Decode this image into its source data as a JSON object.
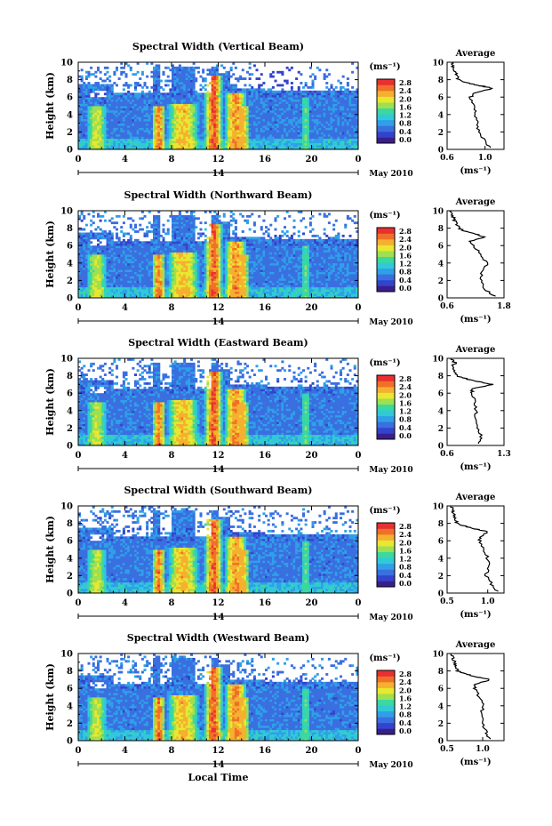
{
  "figure": {
    "month_label": "May 2010",
    "day_label": "14",
    "xlabel": "Local Time",
    "colorbar_unit": "(ms⁻¹)",
    "avg_title": "Average",
    "avg_xlabel": "(ms⁻¹)"
  },
  "colorscale": {
    "ticks": [
      "0.0",
      "0.4",
      "0.8",
      "1.2",
      "1.6",
      "2.0",
      "2.4",
      "2.8"
    ],
    "colors": [
      "#3a1f8c",
      "#3344cc",
      "#3a6fe0",
      "#2fa0e8",
      "#31c9d8",
      "#39d9a0",
      "#9ee050",
      "#e8e830",
      "#f5b030",
      "#f07028",
      "#e83030"
    ]
  },
  "chart_data": [
    {
      "type": "heatmap",
      "title": "Spectral Width (Vertical Beam)",
      "ylabel": "Height (km)",
      "xlim": [
        0,
        24
      ],
      "ylim": [
        0,
        10
      ],
      "x_ticks": [
        "0",
        "4",
        "8",
        "12",
        "16",
        "20",
        "0"
      ],
      "y_ticks": [
        "0",
        "2",
        "4",
        "6",
        "8",
        "10"
      ],
      "colorbar_range": [
        0.0,
        2.8
      ],
      "average_profile": {
        "xlim": [
          0.6,
          1.2
        ],
        "x_ticks": [
          "0.6",
          "1.0"
        ],
        "y_ticks": [
          "0",
          "2",
          "4",
          "6",
          "8",
          "10"
        ],
        "height": [
          0.2,
          1.0,
          2.0,
          3.0,
          4.0,
          5.0,
          6.0,
          6.5,
          7.0,
          7.3,
          7.6,
          8.0,
          8.5,
          9.0,
          9.5,
          10.0
        ],
        "value": [
          1.05,
          1.0,
          0.93,
          0.92,
          0.9,
          0.88,
          0.85,
          0.9,
          1.08,
          0.95,
          0.82,
          0.72,
          0.7,
          0.68,
          0.66,
          0.65
        ]
      }
    },
    {
      "type": "heatmap",
      "title": "Spectral Width (Northward Beam)",
      "ylabel": "Height (km)",
      "xlim": [
        0,
        24
      ],
      "ylim": [
        0,
        10
      ],
      "x_ticks": [
        "0",
        "4",
        "8",
        "12",
        "16",
        "20",
        "0"
      ],
      "y_ticks": [
        "0",
        "2",
        "4",
        "6",
        "8",
        "10"
      ],
      "colorbar_range": [
        0.0,
        2.8
      ],
      "average_profile": {
        "xlim": [
          0.6,
          1.8
        ],
        "x_ticks": [
          "0.6",
          "1.8"
        ],
        "y_ticks": [
          "0",
          "2",
          "4",
          "6",
          "8",
          "10"
        ],
        "height": [
          0.2,
          1.0,
          2.0,
          3.0,
          4.0,
          5.0,
          6.0,
          6.5,
          7.0,
          7.3,
          7.6,
          8.0,
          8.5,
          9.0,
          9.5,
          10.0
        ],
        "value": [
          1.6,
          1.4,
          1.3,
          1.35,
          1.45,
          1.3,
          1.15,
          1.1,
          1.4,
          1.2,
          1.0,
          0.85,
          0.8,
          0.75,
          0.7,
          0.68
        ]
      }
    },
    {
      "type": "heatmap",
      "title": "Spectral Width (Eastward Beam)",
      "ylabel": "Height (km)",
      "xlim": [
        0,
        24
      ],
      "ylim": [
        0,
        10
      ],
      "x_ticks": [
        "0",
        "4",
        "8",
        "12",
        "16",
        "20",
        "0"
      ],
      "y_ticks": [
        "0",
        "2",
        "4",
        "6",
        "8",
        "10"
      ],
      "colorbar_range": [
        0.0,
        2.8
      ],
      "average_profile": {
        "xlim": [
          0.6,
          1.3
        ],
        "x_ticks": [
          "0.6",
          "1.3"
        ],
        "y_ticks": [
          "0",
          "2",
          "4",
          "6",
          "8",
          "10"
        ],
        "height": [
          0.2,
          1.0,
          2.0,
          3.0,
          4.0,
          5.0,
          6.0,
          6.5,
          7.0,
          7.3,
          7.6,
          8.0,
          8.5,
          9.0,
          9.5,
          10.0
        ],
        "value": [
          1.0,
          1.02,
          0.98,
          0.96,
          0.95,
          0.94,
          0.9,
          0.92,
          1.15,
          1.0,
          0.85,
          0.72,
          0.68,
          0.66,
          0.7,
          0.64
        ]
      }
    },
    {
      "type": "heatmap",
      "title": "Spectral Width (Southward Beam)",
      "ylabel": "Height (km)",
      "xlim": [
        0,
        24
      ],
      "ylim": [
        0,
        10
      ],
      "x_ticks": [
        "0",
        "4",
        "8",
        "12",
        "16",
        "20",
        "0"
      ],
      "y_ticks": [
        "0",
        "2",
        "4",
        "6",
        "8",
        "10"
      ],
      "colorbar_range": [
        0.0,
        2.8
      ],
      "average_profile": {
        "xlim": [
          0.5,
          1.2
        ],
        "x_ticks": [
          "0.5",
          "1.0"
        ],
        "y_ticks": [
          "0",
          "2",
          "4",
          "6",
          "8",
          "10"
        ],
        "height": [
          0.2,
          1.0,
          2.0,
          3.0,
          4.0,
          5.0,
          6.0,
          6.5,
          7.0,
          7.3,
          7.6,
          8.0,
          8.5,
          9.0,
          9.5,
          10.0
        ],
        "value": [
          1.12,
          1.05,
          0.98,
          1.02,
          1.0,
          0.95,
          0.9,
          0.92,
          1.0,
          0.88,
          0.75,
          0.62,
          0.6,
          0.58,
          0.56,
          0.55
        ]
      }
    },
    {
      "type": "heatmap",
      "title": "Spectral Width (Westward Beam)",
      "ylabel": "Height (km)",
      "xlim": [
        0,
        24
      ],
      "ylim": [
        0,
        10
      ],
      "x_ticks": [
        "0",
        "4",
        "8",
        "12",
        "16",
        "20",
        "0"
      ],
      "y_ticks": [
        "0",
        "2",
        "4",
        "6",
        "8",
        "10"
      ],
      "colorbar_range": [
        0.0,
        2.8
      ],
      "average_profile": {
        "xlim": [
          0.5,
          1.3
        ],
        "x_ticks": [
          "0.5",
          "1.0"
        ],
        "y_ticks": [
          "0",
          "2",
          "4",
          "6",
          "8",
          "10"
        ],
        "height": [
          0.2,
          1.0,
          2.0,
          3.0,
          4.0,
          5.0,
          6.0,
          6.5,
          7.0,
          7.3,
          7.6,
          8.0,
          8.5,
          9.0,
          9.5,
          10.0
        ],
        "value": [
          1.1,
          1.05,
          1.0,
          0.98,
          1.02,
          0.95,
          0.88,
          0.9,
          1.1,
          0.92,
          0.78,
          0.65,
          0.62,
          0.6,
          0.58,
          0.56
        ]
      }
    }
  ]
}
